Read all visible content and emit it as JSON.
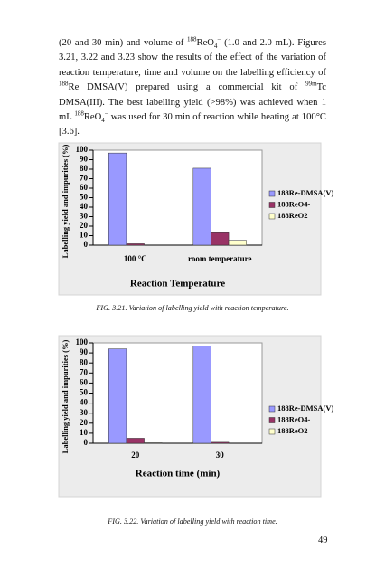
{
  "paragraph": [
    "(20 and 30 min) and volume of ",
    "188",
    "ReO",
    "4",
    "−",
    " (1.0 and 2.0 mL). Figures 3.21, 3.22 and 3.23 show the results of the effect of the variation of reaction temperature, time and volume on the labelling efficiency of ",
    "188",
    "Re DMSA(V) prepared using a commercial kit of ",
    "99m",
    "Tc DMSA(III). The best labelling yield (>98%) was achieved when 1 mL ",
    "188",
    "ReO",
    "4",
    "−",
    " was used for 30 min of reaction while heating at 100°C [3.6]."
  ],
  "chart_data": [
    {
      "type": "bar",
      "y_label": "Labelling yield and impurities (%)",
      "x_label": "Reaction Temperature",
      "categories": [
        "100 °C",
        "room temperature"
      ],
      "series": [
        {
          "name": "188Re-DMSA(V)",
          "color": "#9999ff",
          "values": [
            97,
            81
          ]
        },
        {
          "name": "188ReO4-",
          "color": "#993366",
          "values": [
            1.5,
            14
          ]
        },
        {
          "name": "188ReO2",
          "color": "#ffffcc",
          "values": [
            0,
            5
          ]
        }
      ],
      "ylim": [
        0,
        100
      ],
      "yticks": [
        0,
        10,
        20,
        30,
        40,
        50,
        60,
        70,
        80,
        90,
        100
      ],
      "grid": false,
      "legend": "right",
      "caption": "FIG. 3.21.  Variation of labelling yield with reaction temperature."
    },
    {
      "type": "bar",
      "y_label": "Labelling yield and impurities (%)",
      "x_label": "Reaction time (min)",
      "categories": [
        "20",
        "30"
      ],
      "series": [
        {
          "name": "188Re-DMSA(V)",
          "color": "#9999ff",
          "values": [
            94,
            97
          ]
        },
        {
          "name": "188ReO4-",
          "color": "#993366",
          "values": [
            5,
            1
          ]
        },
        {
          "name": "188ReO2",
          "color": "#ffffcc",
          "values": [
            0.5,
            0
          ]
        }
      ],
      "ylim": [
        0,
        100
      ],
      "yticks": [
        0,
        10,
        20,
        30,
        40,
        50,
        60,
        70,
        80,
        90,
        100
      ],
      "grid": false,
      "legend": "right",
      "caption": "FIG. 3.22.  Variation of labelling yield with reaction time."
    }
  ],
  "page_number": "49"
}
